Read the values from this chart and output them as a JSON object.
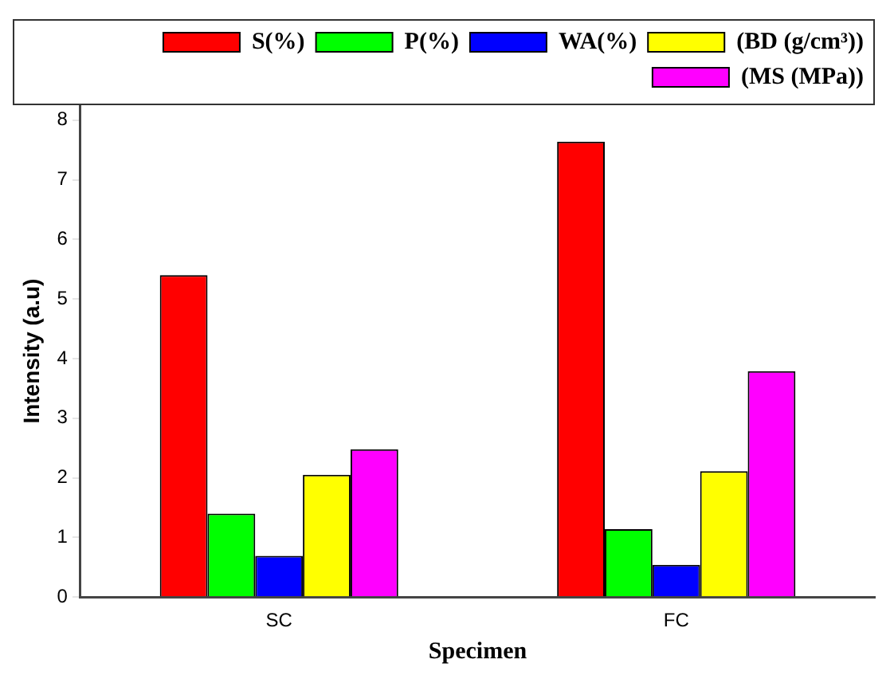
{
  "chart_data": {
    "type": "bar",
    "xlabel": "Specimen",
    "ylabel": "Intensity (a.u)",
    "categories": [
      "SC",
      "FC"
    ],
    "series": [
      {
        "name": "S(%)",
        "color": "#ff0000",
        "values": [
          5.4,
          7.64
        ]
      },
      {
        "name": "P(%)",
        "color": "#00ff00",
        "values": [
          1.4,
          1.14
        ]
      },
      {
        "name": "WA(%)",
        "color": "#0000ff",
        "values": [
          0.69,
          0.54
        ]
      },
      {
        "name": "(BD (g/cm³))",
        "color": "#ffff00",
        "values": [
          2.05,
          2.11
        ]
      },
      {
        "name": "(MS (MPa))",
        "color": "#ff00ff",
        "values": [
          2.48,
          3.79
        ]
      }
    ],
    "ylim": [
      0,
      8.25
    ],
    "yticks": [
      0,
      1,
      2,
      3,
      4,
      5,
      6,
      7,
      8
    ],
    "grid": false,
    "legend": "top right"
  }
}
